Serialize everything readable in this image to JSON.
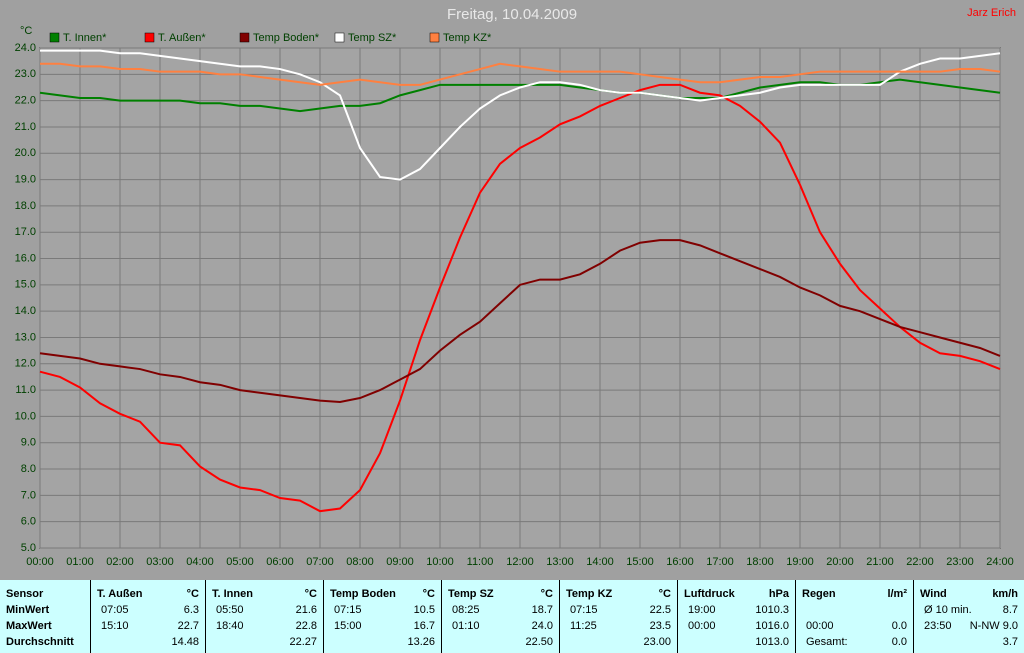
{
  "chart_data": {
    "type": "line",
    "title": "Freitag, 10.04.2009",
    "author": "Jarz Erich",
    "y_label": "°C",
    "grid": true,
    "x": [
      0,
      0.5,
      1,
      1.5,
      2,
      2.5,
      3,
      3.5,
      4,
      4.5,
      5,
      5.5,
      6,
      6.5,
      7,
      7.5,
      8,
      8.5,
      9,
      9.5,
      10,
      10.5,
      11,
      11.5,
      12,
      12.5,
      13,
      13.5,
      14,
      14.5,
      15,
      15.5,
      16,
      16.5,
      17,
      17.5,
      18,
      18.5,
      19,
      19.5,
      20,
      20.5,
      21,
      21.5,
      22,
      22.5,
      23,
      23.5,
      24
    ],
    "xlim": [
      0,
      24
    ],
    "xticks": [
      {
        "value": 0,
        "label": "00:00"
      },
      {
        "value": 1,
        "label": "01:00"
      },
      {
        "value": 2,
        "label": "02:00"
      },
      {
        "value": 3,
        "label": "03:00"
      },
      {
        "value": 4,
        "label": "04:00"
      },
      {
        "value": 5,
        "label": "05:00"
      },
      {
        "value": 6,
        "label": "06:00"
      },
      {
        "value": 7,
        "label": "07:00"
      },
      {
        "value": 8,
        "label": "08:00"
      },
      {
        "value": 9,
        "label": "09:00"
      },
      {
        "value": 10,
        "label": "10:00"
      },
      {
        "value": 11,
        "label": "11:00"
      },
      {
        "value": 12,
        "label": "12:00"
      },
      {
        "value": 13,
        "label": "13:00"
      },
      {
        "value": 14,
        "label": "14:00"
      },
      {
        "value": 15,
        "label": "15:00"
      },
      {
        "value": 16,
        "label": "16:00"
      },
      {
        "value": 17,
        "label": "17:00"
      },
      {
        "value": 18,
        "label": "18:00"
      },
      {
        "value": 19,
        "label": "19:00"
      },
      {
        "value": 20,
        "label": "20:00"
      },
      {
        "value": 21,
        "label": "21:00"
      },
      {
        "value": 22,
        "label": "22:00"
      },
      {
        "value": 23,
        "label": "23:00"
      },
      {
        "value": 24,
        "label": "24:00"
      }
    ],
    "ylim": [
      5,
      24
    ],
    "yticks": [
      {
        "value": 5,
        "label": "5.0"
      },
      {
        "value": 6,
        "label": "6.0"
      },
      {
        "value": 7,
        "label": "7.0"
      },
      {
        "value": 8,
        "label": "8.0"
      },
      {
        "value": 9,
        "label": "9.0"
      },
      {
        "value": 10,
        "label": "10.0"
      },
      {
        "value": 11,
        "label": "11.0"
      },
      {
        "value": 12,
        "label": "12.0"
      },
      {
        "value": 13,
        "label": "13.0"
      },
      {
        "value": 14,
        "label": "14.0"
      },
      {
        "value": 15,
        "label": "15.0"
      },
      {
        "value": 16,
        "label": "16.0"
      },
      {
        "value": 17,
        "label": "17.0"
      },
      {
        "value": 18,
        "label": "18.0"
      },
      {
        "value": 19,
        "label": "19.0"
      },
      {
        "value": 20,
        "label": "20.0"
      },
      {
        "value": 21,
        "label": "21.0"
      },
      {
        "value": 22,
        "label": "22.0"
      },
      {
        "value": 23,
        "label": "23.0"
      },
      {
        "value": 24,
        "label": "24.0"
      }
    ],
    "series": [
      {
        "name": "T. Innen*",
        "color": "#008000",
        "values": [
          22.3,
          22.2,
          22.1,
          22.1,
          22.0,
          22.0,
          22.0,
          22.0,
          21.9,
          21.9,
          21.8,
          21.8,
          21.7,
          21.6,
          21.7,
          21.8,
          21.8,
          21.9,
          22.2,
          22.4,
          22.6,
          22.6,
          22.6,
          22.6,
          22.6,
          22.6,
          22.6,
          22.5,
          22.4,
          22.3,
          22.3,
          22.2,
          22.1,
          22.1,
          22.1,
          22.3,
          22.5,
          22.6,
          22.7,
          22.7,
          22.6,
          22.6,
          22.7,
          22.8,
          22.7,
          22.6,
          22.5,
          22.4,
          22.3
        ]
      },
      {
        "name": "T. Außen*",
        "color": "#ff0000",
        "values": [
          11.7,
          11.5,
          11.1,
          10.5,
          10.1,
          9.8,
          9.0,
          8.9,
          8.1,
          7.6,
          7.3,
          7.2,
          6.9,
          6.8,
          6.4,
          6.5,
          7.2,
          8.6,
          10.6,
          12.9,
          14.9,
          16.8,
          18.5,
          19.6,
          20.2,
          20.6,
          21.1,
          21.4,
          21.8,
          22.1,
          22.4,
          22.6,
          22.6,
          22.3,
          22.2,
          21.8,
          21.2,
          20.4,
          18.8,
          17.0,
          15.8,
          14.8,
          14.1,
          13.4,
          12.8,
          12.4,
          12.3,
          12.1,
          11.8
        ]
      },
      {
        "name": "Temp Boden*",
        "color": "#800000",
        "values": [
          12.4,
          12.3,
          12.2,
          12.0,
          11.9,
          11.8,
          11.6,
          11.5,
          11.3,
          11.2,
          11.0,
          10.9,
          10.8,
          10.7,
          10.6,
          10.55,
          10.7,
          11.0,
          11.4,
          11.8,
          12.5,
          13.1,
          13.6,
          14.3,
          15.0,
          15.2,
          15.2,
          15.4,
          15.8,
          16.3,
          16.6,
          16.7,
          16.7,
          16.5,
          16.2,
          15.9,
          15.6,
          15.3,
          14.9,
          14.6,
          14.2,
          14.0,
          13.7,
          13.4,
          13.2,
          13.0,
          12.8,
          12.6,
          12.3
        ]
      },
      {
        "name": "Temp SZ*",
        "color": "#ffffff",
        "values": [
          23.9,
          23.9,
          23.9,
          23.9,
          23.8,
          23.8,
          23.7,
          23.6,
          23.5,
          23.4,
          23.3,
          23.3,
          23.2,
          23.0,
          22.7,
          22.2,
          20.2,
          19.1,
          19.0,
          19.4,
          20.2,
          21.0,
          21.7,
          22.2,
          22.5,
          22.7,
          22.7,
          22.6,
          22.4,
          22.3,
          22.3,
          22.2,
          22.1,
          22.0,
          22.1,
          22.2,
          22.3,
          22.5,
          22.6,
          22.6,
          22.6,
          22.6,
          22.6,
          23.1,
          23.4,
          23.6,
          23.6,
          23.7,
          23.8
        ]
      },
      {
        "name": "Temp KZ*",
        "color": "#ff8040",
        "values": [
          23.4,
          23.4,
          23.3,
          23.3,
          23.2,
          23.2,
          23.1,
          23.1,
          23.1,
          23.0,
          23.0,
          22.9,
          22.8,
          22.7,
          22.6,
          22.7,
          22.8,
          22.7,
          22.6,
          22.6,
          22.8,
          23.0,
          23.2,
          23.4,
          23.3,
          23.2,
          23.1,
          23.1,
          23.1,
          23.1,
          23.0,
          22.9,
          22.8,
          22.7,
          22.7,
          22.8,
          22.9,
          22.9,
          23.0,
          23.1,
          23.1,
          23.1,
          23.1,
          23.1,
          23.1,
          23.1,
          23.2,
          23.2,
          23.1
        ]
      }
    ]
  },
  "table": {
    "row_labels": [
      "Sensor",
      "MinWert",
      "MaxWert",
      "Durchschnitt"
    ],
    "groups": [
      {
        "name": "T. Außen",
        "unit": "°C",
        "rows": [
          [
            "07:05",
            "6.3"
          ],
          [
            "15:10",
            "22.7"
          ],
          [
            "14.48"
          ]
        ]
      },
      {
        "name": "T. Innen",
        "unit": "°C",
        "rows": [
          [
            "05:50",
            "21.6"
          ],
          [
            "18:40",
            "22.8"
          ],
          [
            "22.27"
          ]
        ]
      },
      {
        "name": "Temp Boden",
        "unit": "°C",
        "rows": [
          [
            "07:15",
            "10.5"
          ],
          [
            "15:00",
            "16.7"
          ],
          [
            "13.26"
          ]
        ]
      },
      {
        "name": "Temp SZ",
        "unit": "°C",
        "rows": [
          [
            "08:25",
            "18.7"
          ],
          [
            "01:10",
            "24.0"
          ],
          [
            "22.50"
          ]
        ]
      },
      {
        "name": "Temp KZ",
        "unit": "°C",
        "rows": [
          [
            "07:15",
            "22.5"
          ],
          [
            "11:25",
            "23.5"
          ],
          [
            "23.00"
          ]
        ]
      },
      {
        "name": "Luftdruck",
        "unit": "hPa",
        "rows": [
          [
            "19:00",
            "1010.3"
          ],
          [
            "00:00",
            "1016.0"
          ],
          [
            "1013.0"
          ]
        ]
      },
      {
        "name": "Regen",
        "unit": "l/m²",
        "rows": [
          [],
          [
            "00:00",
            "0.0"
          ],
          [
            "Gesamt:",
            "0.0"
          ]
        ]
      },
      {
        "name": "Wind",
        "unit": "km/h",
        "rows": [
          [
            "Ø 10 min.",
            "8.7"
          ],
          [
            "23:50",
            "N-NW 9.0"
          ],
          [
            "3.7"
          ]
        ]
      }
    ]
  }
}
